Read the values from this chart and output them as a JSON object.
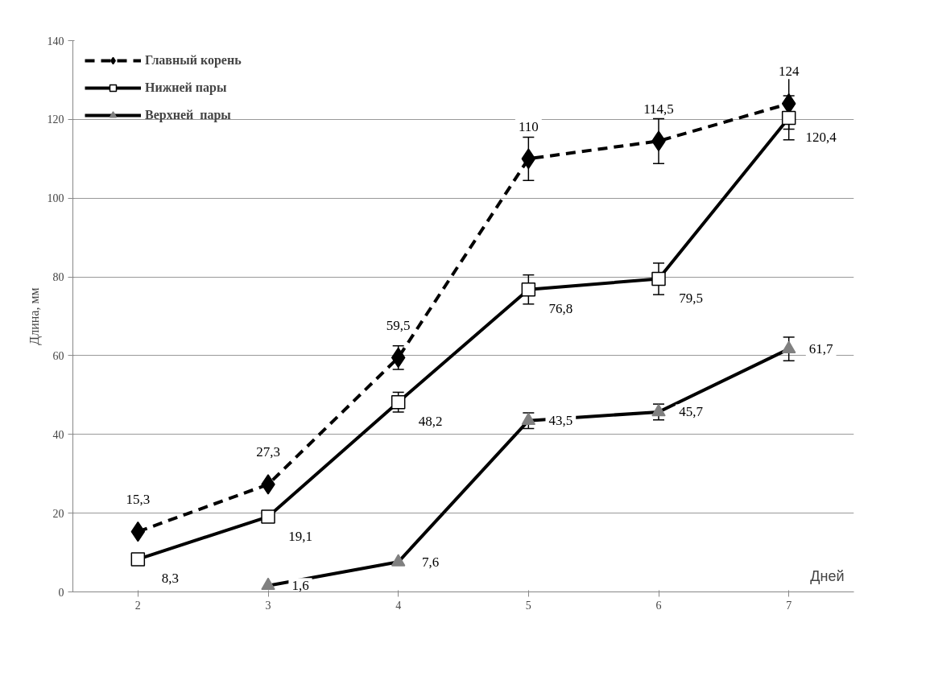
{
  "chart_data": {
    "type": "line",
    "xlabel": "Дней",
    "ylabel": "Длина, мм",
    "categories": [
      "2",
      "3",
      "4",
      "5",
      "6",
      "7"
    ],
    "ylim": [
      0,
      140
    ],
    "yticks": [
      0,
      20,
      40,
      60,
      80,
      100,
      120,
      140
    ],
    "grid": "y",
    "legend": "top left",
    "series": [
      {
        "name": "Главный корень",
        "color": "#000000",
        "marker": "diamond",
        "line_style": "dashed",
        "values": [
          15.3,
          27.3,
          59.5,
          110,
          114.5,
          124
        ],
        "value_labels": [
          "15,3",
          "27,3",
          "59,5",
          "110",
          "114,5",
          "124"
        ],
        "errors": [
          null,
          null,
          3,
          5.5,
          5.7,
          6.5
        ]
      },
      {
        "name": "Нижней пары",
        "color": "#ffffff",
        "marker": "square",
        "line_style": "solid",
        "values": [
          8.3,
          19.1,
          48.2,
          76.8,
          79.5,
          120.4
        ],
        "value_labels": [
          "8,3",
          "19,1",
          "48,2",
          "76,8",
          "79,5",
          "120,4"
        ],
        "errors": [
          null,
          null,
          2.5,
          3.7,
          4,
          5.6
        ]
      },
      {
        "name": "Верхней  пары",
        "color": "#808080",
        "marker": "triangle",
        "line_style": "solid",
        "values": [
          null,
          1.6,
          7.6,
          43.5,
          45.7,
          61.7
        ],
        "value_labels": [
          null,
          "1,6",
          "7,6",
          "43,5",
          "45,7",
          "61,7"
        ],
        "errors": [
          null,
          null,
          null,
          2,
          2,
          3
        ]
      }
    ]
  }
}
